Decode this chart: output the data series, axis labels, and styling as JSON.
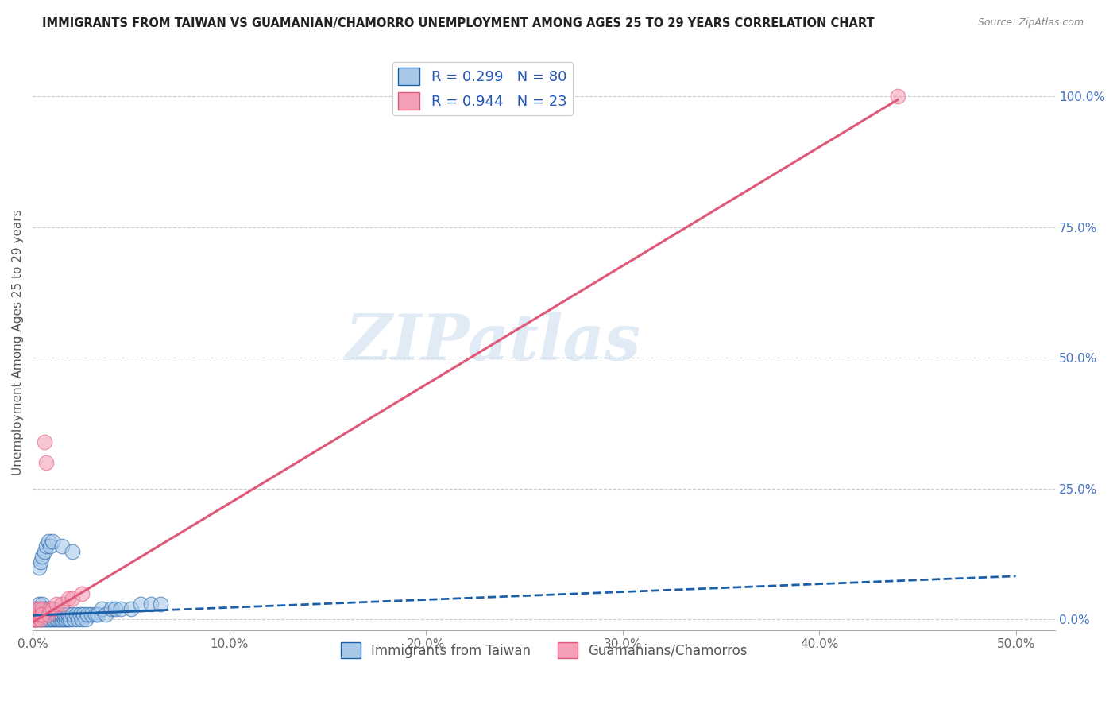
{
  "title": "IMMIGRANTS FROM TAIWAN VS GUAMANIAN/CHAMORRO UNEMPLOYMENT AMONG AGES 25 TO 29 YEARS CORRELATION CHART",
  "source": "Source: ZipAtlas.com",
  "ylabel": "Unemployment Among Ages 25 to 29 years",
  "xlim": [
    0.0,
    0.52
  ],
  "ylim": [
    -0.02,
    1.08
  ],
  "x_ticks": [
    0.0,
    0.1,
    0.2,
    0.3,
    0.4,
    0.5
  ],
  "x_tick_labels": [
    "0.0%",
    "10.0%",
    "20.0%",
    "30.0%",
    "40.0%",
    "50.0%"
  ],
  "y_ticks_right": [
    0.0,
    0.25,
    0.5,
    0.75,
    1.0
  ],
  "y_tick_labels_right": [
    "0.0%",
    "25.0%",
    "50.0%",
    "75.0%",
    "100.0%"
  ],
  "legend1_label": "R = 0.299   N = 80",
  "legend2_label": "R = 0.944   N = 23",
  "legend_series1": "Immigrants from Taiwan",
  "legend_series2": "Guamanians/Chamorros",
  "color_blue": "#a8c8e8",
  "color_pink": "#f4a0b8",
  "color_blue_line": "#1a5fa8",
  "color_pink_line": "#e05878",
  "watermark": "ZIPatlas",
  "taiwan_x": [
    0.0005,
    0.001,
    0.001,
    0.0015,
    0.001,
    0.002,
    0.002,
    0.002,
    0.003,
    0.003,
    0.003,
    0.003,
    0.004,
    0.004,
    0.004,
    0.005,
    0.005,
    0.005,
    0.005,
    0.006,
    0.006,
    0.006,
    0.007,
    0.007,
    0.007,
    0.008,
    0.008,
    0.008,
    0.009,
    0.009,
    0.01,
    0.01,
    0.01,
    0.011,
    0.011,
    0.012,
    0.012,
    0.013,
    0.013,
    0.014,
    0.014,
    0.015,
    0.015,
    0.016,
    0.016,
    0.017,
    0.018,
    0.018,
    0.019,
    0.02,
    0.021,
    0.022,
    0.023,
    0.024,
    0.025,
    0.026,
    0.027,
    0.028,
    0.03,
    0.032,
    0.033,
    0.035,
    0.037,
    0.04,
    0.042,
    0.045,
    0.05,
    0.055,
    0.06,
    0.065,
    0.003,
    0.004,
    0.005,
    0.006,
    0.007,
    0.008,
    0.009,
    0.01,
    0.015,
    0.02
  ],
  "taiwan_y": [
    0.0,
    0.0,
    0.01,
    0.0,
    0.02,
    0.0,
    0.01,
    0.02,
    0.0,
    0.01,
    0.02,
    0.03,
    0.0,
    0.01,
    0.02,
    0.0,
    0.01,
    0.02,
    0.03,
    0.0,
    0.01,
    0.02,
    0.0,
    0.01,
    0.02,
    0.0,
    0.01,
    0.02,
    0.0,
    0.01,
    0.0,
    0.01,
    0.02,
    0.0,
    0.01,
    0.0,
    0.01,
    0.0,
    0.01,
    0.0,
    0.01,
    0.0,
    0.01,
    0.0,
    0.01,
    0.0,
    0.0,
    0.01,
    0.0,
    0.01,
    0.0,
    0.01,
    0.0,
    0.01,
    0.0,
    0.01,
    0.0,
    0.01,
    0.01,
    0.01,
    0.01,
    0.02,
    0.01,
    0.02,
    0.02,
    0.02,
    0.02,
    0.03,
    0.03,
    0.03,
    0.1,
    0.11,
    0.12,
    0.13,
    0.14,
    0.15,
    0.14,
    0.15,
    0.14,
    0.13
  ],
  "guam_x": [
    0.0005,
    0.001,
    0.001,
    0.0015,
    0.002,
    0.002,
    0.003,
    0.003,
    0.004,
    0.004,
    0.005,
    0.005,
    0.006,
    0.007,
    0.008,
    0.009,
    0.01,
    0.012,
    0.015,
    0.018,
    0.02,
    0.025,
    0.44
  ],
  "guam_y": [
    0.0,
    0.0,
    0.01,
    0.02,
    0.0,
    0.01,
    0.01,
    0.02,
    0.0,
    0.01,
    0.02,
    0.01,
    0.34,
    0.3,
    0.01,
    0.02,
    0.02,
    0.03,
    0.03,
    0.04,
    0.04,
    0.05,
    1.0
  ]
}
